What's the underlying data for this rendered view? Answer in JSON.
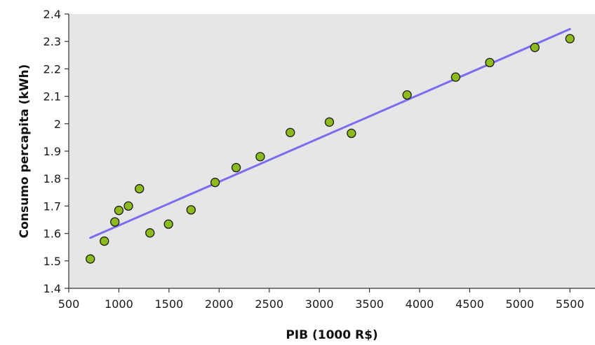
{
  "chart_data": {
    "type": "scatter",
    "title": "",
    "xlabel": "PIB (1000 R$)",
    "ylabel": "Consumo percapita (kWh)",
    "xlim": [
      500,
      5750
    ],
    "ylim": [
      1.4,
      2.4
    ],
    "x_ticks": [
      500,
      1000,
      1500,
      2000,
      2500,
      3000,
      3500,
      4000,
      4500,
      5000,
      5500
    ],
    "y_ticks": [
      1.4,
      1.5,
      1.6,
      1.7,
      1.8,
      1.9,
      2.0,
      2.1,
      2.2,
      2.3,
      2.4
    ],
    "x_tick_labels": [
      "500",
      "1000",
      "1500",
      "2000",
      "2500",
      "3000",
      "3500",
      "4000",
      "4500",
      "5000",
      "5500"
    ],
    "y_tick_labels": [
      "1.4",
      "1.5",
      "1.6",
      "1.7",
      "1.8",
      "1.9",
      "2",
      "2.1",
      "2.2",
      "2.3",
      "2.4"
    ],
    "grid": false,
    "series": [
      {
        "kind": "scatter",
        "color": "#8dbb1c",
        "points": [
          {
            "x": 715,
            "y": 1.507
          },
          {
            "x": 855,
            "y": 1.572
          },
          {
            "x": 960,
            "y": 1.642
          },
          {
            "x": 1000,
            "y": 1.684
          },
          {
            "x": 1095,
            "y": 1.7
          },
          {
            "x": 1205,
            "y": 1.763
          },
          {
            "x": 1310,
            "y": 1.602
          },
          {
            "x": 1495,
            "y": 1.634
          },
          {
            "x": 1720,
            "y": 1.686
          },
          {
            "x": 1960,
            "y": 1.786
          },
          {
            "x": 2170,
            "y": 1.84
          },
          {
            "x": 2410,
            "y": 1.88
          },
          {
            "x": 2710,
            "y": 1.968
          },
          {
            "x": 3100,
            "y": 2.006
          },
          {
            "x": 3320,
            "y": 1.965
          },
          {
            "x": 3875,
            "y": 2.105
          },
          {
            "x": 4360,
            "y": 2.17
          },
          {
            "x": 4700,
            "y": 2.223
          },
          {
            "x": 5150,
            "y": 2.278
          },
          {
            "x": 5500,
            "y": 2.31
          }
        ]
      },
      {
        "kind": "line",
        "color": "#7b6cf0",
        "x": [
          715,
          5500
        ],
        "y": [
          1.584,
          2.345
        ]
      }
    ],
    "colors": {
      "plot_background": "#e6e6e6",
      "axis": "#333333",
      "marker_stroke": "#1a1a1a"
    }
  }
}
